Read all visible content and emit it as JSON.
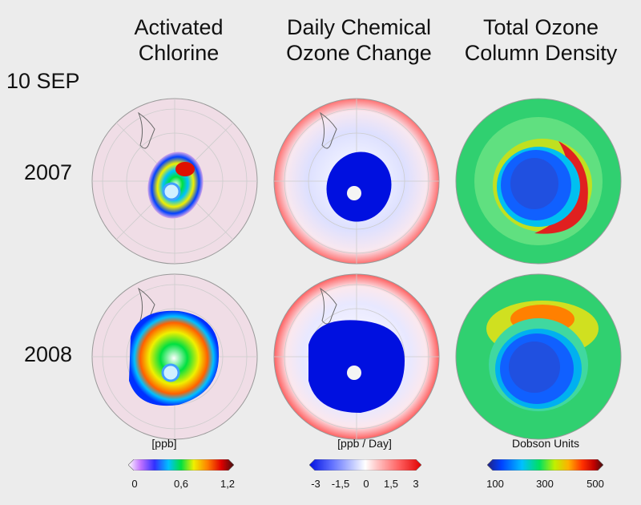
{
  "date_label": "10 SEP",
  "columns": [
    {
      "line1": "Activated",
      "line2": "Chlorine"
    },
    {
      "line1": "Daily Chemical",
      "line2": "Ozone Change"
    },
    {
      "line1": "Total Ozone",
      "line2": "Column Density"
    }
  ],
  "rows": [
    {
      "label": "2007"
    },
    {
      "label": "2008"
    }
  ],
  "legends": [
    {
      "title": "[ppb]",
      "ticks": [
        "0",
        "0,6",
        "1,2"
      ],
      "colors": [
        "#ffffff",
        "#c070ff",
        "#3030ff",
        "#00c0ff",
        "#00e040",
        "#f0f000",
        "#ff8000",
        "#e00000",
        "#401010"
      ]
    },
    {
      "title": "[ppb / Day]",
      "ticks": [
        "-3",
        "-1,5",
        "0",
        "1,5",
        "3"
      ],
      "colors": [
        "#0010e0",
        "#6070ff",
        "#c8d0ff",
        "#ffffff",
        "#ffc8c8",
        "#ff6060",
        "#e00000"
      ]
    },
    {
      "title": "Dobson Units",
      "ticks": [
        "100",
        "300",
        "500"
      ],
      "colors": [
        "#202080",
        "#0040ff",
        "#00c0ff",
        "#00e060",
        "#c0f000",
        "#ffb000",
        "#ff3000",
        "#c00000",
        "#401010"
      ]
    }
  ]
}
